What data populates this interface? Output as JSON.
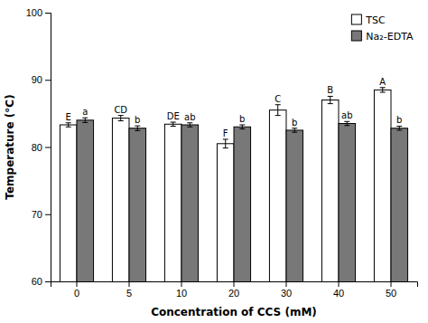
{
  "chart_data": {
    "type": "bar",
    "xlabel": "Concentration of CCS (mM)",
    "ylabel": "Temperature (°C)",
    "categories": [
      "0",
      "5",
      "10",
      "20",
      "30",
      "40",
      "50"
    ],
    "series": [
      {
        "name": "TSC",
        "color": "#ffffff",
        "values": [
          83.3,
          84.3,
          83.4,
          80.5,
          85.5,
          87.0,
          88.5
        ],
        "errors": [
          0.3,
          0.4,
          0.3,
          0.65,
          0.8,
          0.55,
          0.35
        ],
        "annotations": [
          "E",
          "CD",
          "DE",
          "F",
          "C",
          "B",
          "A"
        ]
      },
      {
        "name": "Na₂-EDTA",
        "color": "#787878",
        "values": [
          84.0,
          82.8,
          83.3,
          83.0,
          82.5,
          83.5,
          82.8
        ],
        "errors": [
          0.35,
          0.35,
          0.3,
          0.3,
          0.3,
          0.3,
          0.3
        ],
        "annotations": [
          "a",
          "b",
          "ab",
          "b",
          "b",
          "ab",
          "b"
        ]
      }
    ],
    "ylim": [
      60,
      100
    ],
    "yticks": [
      60,
      70,
      80,
      90,
      100
    ],
    "grid": false,
    "legend": "upper right"
  }
}
